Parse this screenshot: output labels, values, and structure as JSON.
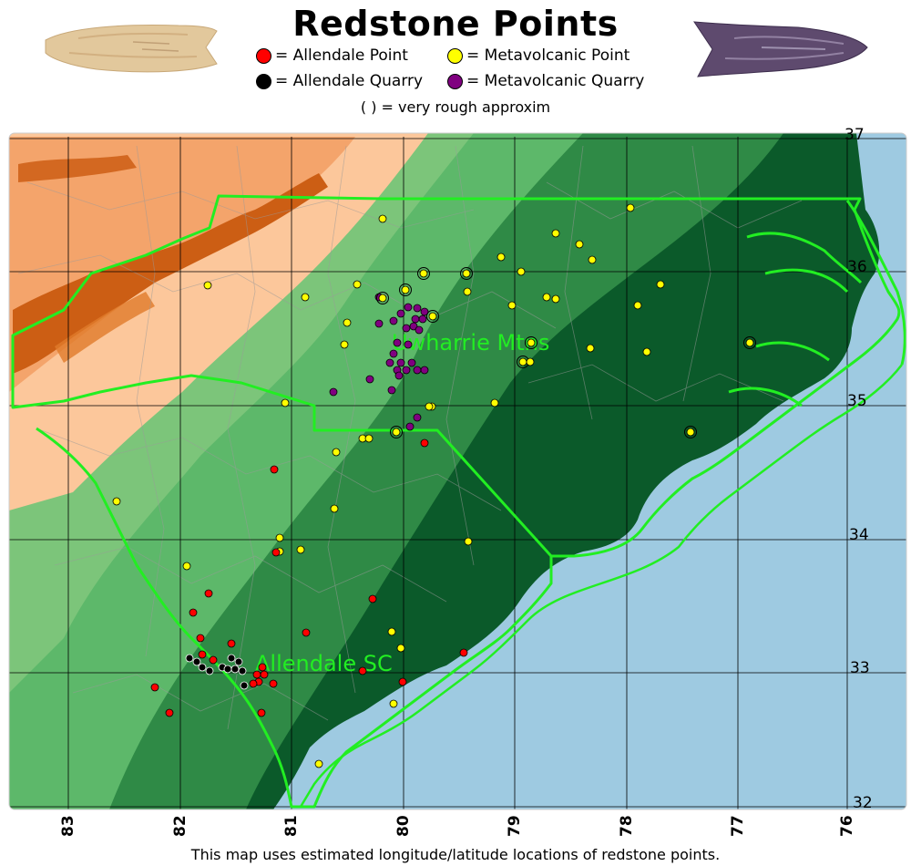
{
  "title": "Redstone Points",
  "legend": {
    "items": [
      {
        "label": "= Allendale Point",
        "color": "#ff0000"
      },
      {
        "label": "= Metavolcanic Point",
        "color": "#ffff00"
      },
      {
        "label": "= Allendale Quarry",
        "color": "#000000"
      },
      {
        "label": "= Metavolcanic Quarry",
        "color": "#800080"
      }
    ],
    "note": "( ) = very rough approxim"
  },
  "map": {
    "latitude_labels": [
      "37",
      "36",
      "35",
      "34",
      "33",
      "32"
    ],
    "longitude_labels": [
      "83",
      "82",
      "81",
      "80",
      "79",
      "78",
      "77",
      "76"
    ],
    "place_labels": [
      "Uwharrie Mtns",
      "Allendale SC"
    ],
    "colors": {
      "ocean": "#9ecae1",
      "lowland": "#0b5a2a",
      "midland": "#2f8a46",
      "upland": "#5db86a",
      "piedmont_light": "#7cc57a",
      "mountain_light": "#fcc79b",
      "mountain_mid": "#f4a46b",
      "mountain_dark": "#cc5e14",
      "state_border": "#22ee22"
    }
  },
  "footer": "This map uses estimated longitude/latitude locations of redstone points."
}
